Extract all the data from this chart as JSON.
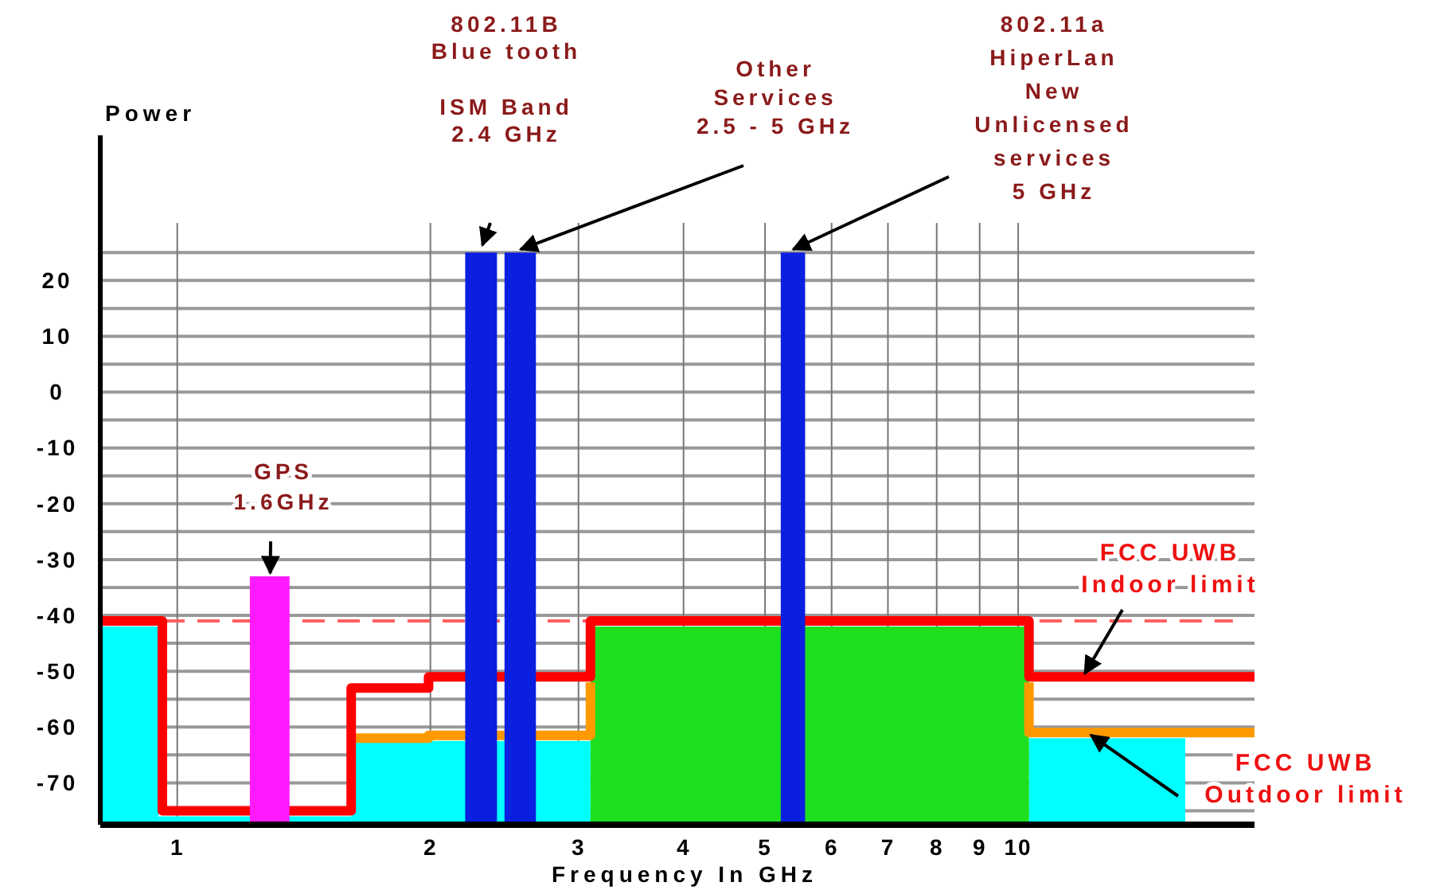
{
  "chart_data": {
    "type": "line",
    "xlabel": "Frequency In GHz",
    "ylabel": "Power",
    "log": "x",
    "xlim": [
      0.81,
      19.1
    ],
    "ylim": [
      -77.5,
      46
    ],
    "xticks": [
      1,
      2,
      3,
      4,
      5,
      6,
      7,
      8,
      9,
      10
    ],
    "yticks": [
      {
        "value": 25,
        "label": null
      },
      20,
      {
        "value": 15,
        "label": null
      },
      10,
      {
        "value": 5,
        "label": null
      },
      0,
      {
        "value": -5,
        "label": null
      },
      -10,
      {
        "value": -15,
        "label": null
      },
      -20,
      {
        "value": -25,
        "label": null
      },
      -30,
      {
        "value": -35,
        "label": null
      },
      -40,
      {
        "value": -45,
        "label": null
      },
      -50,
      {
        "value": -55,
        "label": null
      },
      -60,
      {
        "value": -65,
        "label": null
      },
      -70,
      {
        "value": -75,
        "label": null
      }
    ],
    "grid": true,
    "series": [
      {
        "type": "histogram",
        "color": "#00ffff",
        "bins": [
          0.81,
          0.95,
          1.61,
          3.1,
          10.3,
          15.8
        ],
        "values": [
          35.5,
          1.5,
          15,
          null,
          15.5
        ],
        "base": [
          -77.5,
          -77.5,
          -77.5,
          null,
          -77.5
        ]
      },
      {
        "type": "histogram",
        "color": "#1fe01f",
        "bins": [
          3.1,
          10.3
        ],
        "values": [
          35.5
        ],
        "base": [
          -77.5
        ]
      },
      {
        "line_style": "dashed",
        "color": "#ff6060",
        "x": [
          0.96,
          3.1,
          6,
          10.6,
          18
        ],
        "values": [
          -41,
          -41,
          null,
          -41,
          -41
        ]
      },
      {
        "color": "#ff9900",
        "x": [
          1.61,
          1.99,
          1.99,
          3.1,
          3.1,
          6,
          10.3,
          10.3,
          19.1
        ],
        "values": [
          -62,
          -62,
          -61.5,
          -61.5,
          -52,
          null,
          -52,
          -61,
          -61
        ]
      },
      {
        "color": "#ff0000",
        "x": [
          0.81,
          0.96,
          0.96,
          1.61,
          1.61,
          1.99,
          1.99,
          3.1,
          3.1,
          10.3,
          10.3,
          19.1
        ],
        "values": [
          -41,
          -41,
          -75,
          -75,
          -53,
          -53,
          -51,
          -51,
          -41,
          -41,
          -51,
          -51
        ]
      },
      {
        "type": "histogram",
        "color": "#ff1aff",
        "bins": [
          1.22,
          1.36
        ],
        "values": [
          44.5
        ],
        "base": [
          -77.5
        ]
      },
      {
        "type": "histogram",
        "color": "#0a1fe0",
        "bins": [
          2.2,
          2.4,
          2.45,
          2.67,
          5.22,
          5.58
        ],
        "values": [
          102.5,
          null,
          102.5,
          null,
          102.5
        ],
        "base": [
          -77.5,
          null,
          -77.5,
          null,
          -77.5
        ]
      }
    ],
    "annotations": [
      "802.11B\nBlue tooth",
      "ISM Band\n2.4 GHz",
      {
        "text": "Other\nServices\n2.5 - 5 GHz",
        "x": 2.56,
        "y": 25
      },
      {
        "text": "802.11a\nHiperLan\nNew\nUnlicensed\nservices\n5 GHz",
        "x": 5.4,
        "y": 25
      },
      {
        "text": "GPS\n1.6GHz",
        "x": 1.29,
        "y": -33
      },
      {
        "text": "FCC  UWB\nIndoor limit",
        "x": 12,
        "y": -51
      },
      {
        "text": "FCC  UWB\nOutdoor limit",
        "x": 12.2,
        "y": -62
      }
    ]
  }
}
